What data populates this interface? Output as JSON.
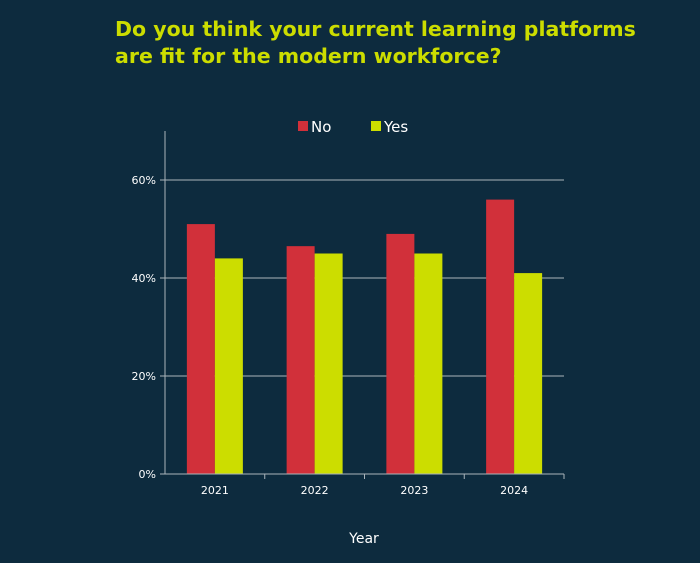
{
  "chart_data": {
    "type": "bar",
    "title_lines": [
      "Do you think your current learning platforms",
      "are fit for the modern workforce?"
    ],
    "xlabel": "Year",
    "ylabel": "",
    "categories": [
      "2021",
      "2022",
      "2023",
      "2024"
    ],
    "series": [
      {
        "name": "No",
        "color": "#d1303a",
        "values": [
          51,
          46.5,
          49,
          56
        ]
      },
      {
        "name": "Yes",
        "color": "#ccdd00",
        "values": [
          44,
          45,
          45,
          41
        ]
      }
    ],
    "ylim": [
      0,
      70
    ],
    "yticks": [
      0,
      20,
      40,
      60
    ],
    "ytick_labels": [
      "0%",
      "20%",
      "40%",
      "60%"
    ],
    "grid": true,
    "legend_position": "top-center",
    "colors": {
      "background": "#0d2b3e",
      "title": "#ccdd00",
      "grid": "#aab4bb",
      "text": "#ffffff"
    }
  }
}
